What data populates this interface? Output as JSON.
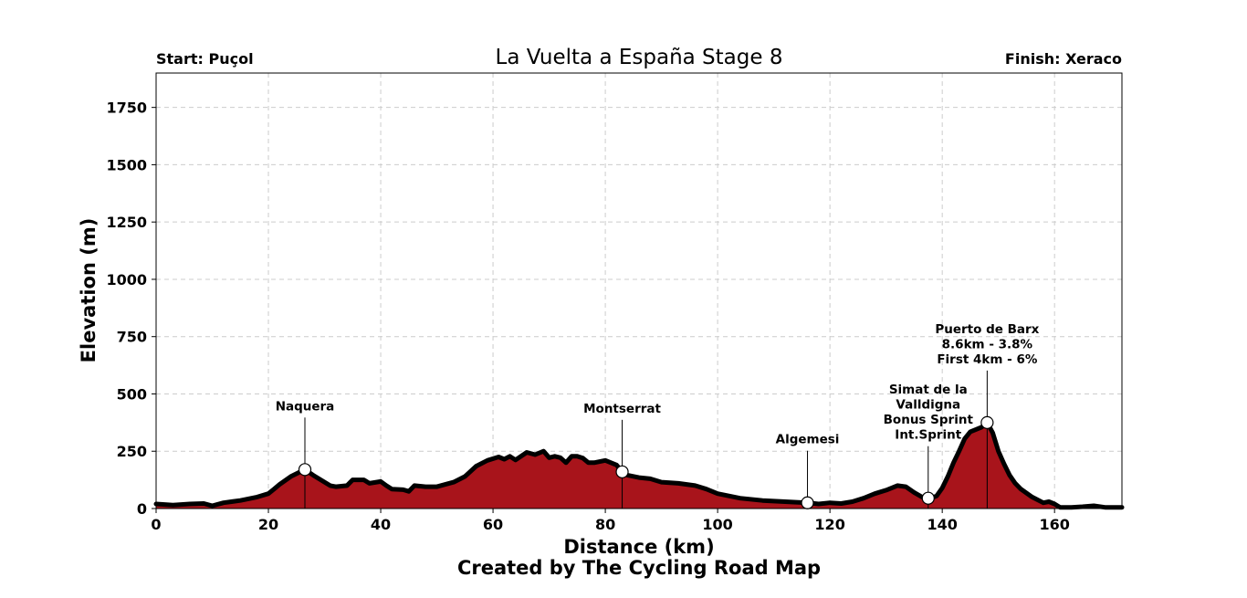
{
  "chart_data": {
    "type": "area",
    "title": "La Vuelta a España Stage 8",
    "start_label": "Start: Puçol",
    "finish_label": "Finish: Xeraco",
    "xlabel": "Distance (km)",
    "ylabel": "Elevation (m)",
    "credit": "Created by The Cycling Road Map",
    "xlim": [
      0,
      172
    ],
    "ylim": [
      0,
      1900
    ],
    "x_ticks": [
      "0",
      "20",
      "40",
      "60",
      "80",
      "100",
      "120",
      "140",
      "160"
    ],
    "y_ticks": [
      "0",
      "250",
      "500",
      "750",
      "1000",
      "1250",
      "1500",
      "1750"
    ],
    "grid": true,
    "fill_color": "#a8141b",
    "line_color": "#000000",
    "grid_color": "#cccccc",
    "x": [
      0,
      3,
      6,
      8.5,
      10,
      12,
      15,
      18,
      20,
      21,
      22,
      24,
      26.5,
      28,
      31,
      32,
      34,
      35,
      37,
      38,
      40,
      41,
      42,
      44,
      45,
      46,
      48,
      50,
      53,
      55,
      57,
      59,
      61,
      62,
      63,
      64,
      66,
      67.5,
      69,
      70,
      71,
      72,
      73,
      74,
      75,
      76,
      77,
      78,
      80,
      82,
      83,
      84,
      86,
      88,
      90,
      93,
      96,
      98,
      100,
      104,
      108,
      112,
      116,
      118,
      120,
      122,
      124,
      126,
      128,
      130,
      132,
      133.5,
      135,
      137,
      138,
      139,
      140,
      141,
      142,
      143,
      144,
      145,
      146,
      147,
      148,
      149,
      150,
      151,
      152,
      153,
      154,
      156,
      158,
      159,
      160,
      161,
      163,
      165,
      167,
      169,
      172
    ],
    "y": [
      20,
      15,
      20,
      22,
      12,
      25,
      35,
      50,
      65,
      85,
      105,
      140,
      170,
      145,
      100,
      95,
      100,
      125,
      125,
      110,
      118,
      100,
      85,
      82,
      75,
      100,
      95,
      95,
      115,
      140,
      185,
      210,
      225,
      215,
      228,
      212,
      245,
      235,
      250,
      222,
      228,
      222,
      200,
      228,
      228,
      220,
      200,
      200,
      210,
      190,
      160,
      145,
      135,
      130,
      115,
      110,
      100,
      85,
      65,
      45,
      35,
      30,
      25,
      20,
      25,
      22,
      30,
      45,
      65,
      80,
      100,
      95,
      70,
      42,
      45,
      55,
      90,
      140,
      200,
      250,
      305,
      335,
      345,
      355,
      375,
      330,
      250,
      195,
      145,
      110,
      85,
      50,
      25,
      30,
      20,
      5,
      5,
      8,
      12,
      5,
      5
    ],
    "annotations": [
      {
        "lines": [
          "Naquera"
        ],
        "x": 26.5,
        "y": 170
      },
      {
        "lines": [
          "Montserrat"
        ],
        "x": 83,
        "y": 160
      },
      {
        "lines": [
          "Algemesi"
        ],
        "x": 116,
        "y": 25
      },
      {
        "lines": [
          "Simat de la",
          "Valldigna",
          "Bonus Sprint",
          "Int.Sprint"
        ],
        "x": 137.5,
        "y": 45
      },
      {
        "lines": [
          "Puerto de Barx",
          "8.6km - 3.8%",
          "First 4km - 6%"
        ],
        "x": 148,
        "y": 375
      }
    ]
  }
}
